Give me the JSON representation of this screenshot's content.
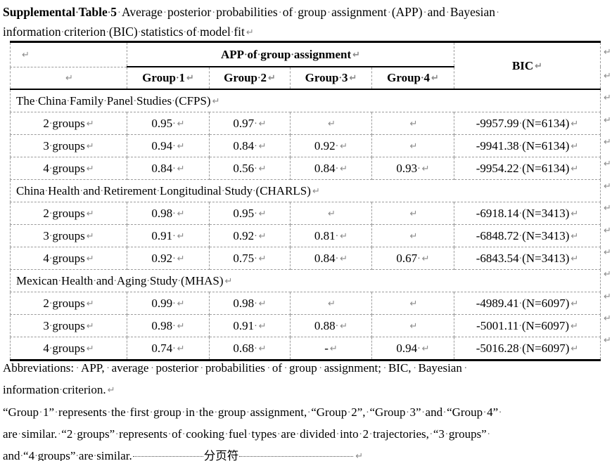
{
  "formatting_marks": {
    "paragraph_end": "↵",
    "space_dot": "·"
  },
  "colors": {
    "text": "#000000",
    "formatting_marks": "#8a8a8a",
    "solid_border": "#000000",
    "dashed_grid": "#9c9c9c",
    "background": "#ffffff"
  },
  "title": {
    "bold": "Supplemental Table 5",
    "line1_rest": " Average posterior probabilities of group assignment (APP) and Bayesian ",
    "line2": "information criterion (BIC) statistics of model fit"
  },
  "table": {
    "header": {
      "app_span_label": "APP of group assignment",
      "bic_label": "BIC",
      "group_cols": [
        "Group 1",
        "Group 2",
        "Group 3",
        "Group 4"
      ]
    },
    "sections": [
      {
        "label": "The China Family Panel Studies (CFPS)",
        "rows": [
          {
            "label": "2 groups",
            "g1": "0.95 ",
            "g2": "0.97 ",
            "g3": "",
            "g4": "",
            "bic": "-9957.99 (N=6134)"
          },
          {
            "label": "3 groups",
            "g1": "0.94 ",
            "g2": "0.84 ",
            "g3": "0.92 ",
            "g4": "",
            "bic": "-9941.38 (N=6134)"
          },
          {
            "label": "4 groups",
            "g1": "0.84 ",
            "g2": "0.56 ",
            "g3": "0.84 ",
            "g4": "0.93 ",
            "bic": "-9954.22 (N=6134)"
          }
        ]
      },
      {
        "label": "China Health and Retirement Longitudinal Study (CHARLS)",
        "rows": [
          {
            "label": "2 groups",
            "g1": "0.98 ",
            "g2": "0.95 ",
            "g3": "",
            "g4": "",
            "bic": "-6918.14 (N=3413)"
          },
          {
            "label": "3 groups",
            "g1": "0.91 ",
            "g2": "0.92 ",
            "g3": "0.81 ",
            "g4": "",
            "bic": "-6848.72 (N=3413)"
          },
          {
            "label": "4 groups",
            "g1": "0.92 ",
            "g2": "0.75 ",
            "g3": "0.84 ",
            "g4": "0.67 ",
            "bic": "-6843.54 (N=3413)"
          }
        ]
      },
      {
        "label": "Mexican Health and Aging Study (MHAS)",
        "rows": [
          {
            "label": "2 groups",
            "g1": "0.99 ",
            "g2": "0.98 ",
            "g3": "",
            "g4": "",
            "bic": "-4989.41 (N=6097)"
          },
          {
            "label": "3 groups",
            "g1": "0.98 ",
            "g2": "0.91 ",
            "g3": "0.88 ",
            "g4": "",
            "bic": "-5001.11 (N=6097)"
          },
          {
            "label": "4 groups",
            "g1": "0.74 ",
            "g2": "0.68 ",
            "g3": "-",
            "g4": "0.94 ",
            "bic": "-5016.28 (N=6097)"
          }
        ]
      }
    ]
  },
  "notes": {
    "abbrev_line1": "Abbreviations: APP, average posterior probabilities of group assignment; BIC, Bayesian ",
    "abbrev_line2": "information criterion.",
    "groups_line1": "“Group 1” represents the first group in the group assignment, “Group 2”, “Group 3” and “Group 4” ",
    "groups_line2": "are similar. “2 groups” represents of cooking fuel types are divided into 2 trajectories, “3 groups” ",
    "groups_line3": "and “4 groups” are similar.",
    "page_break_label": "分页符"
  }
}
